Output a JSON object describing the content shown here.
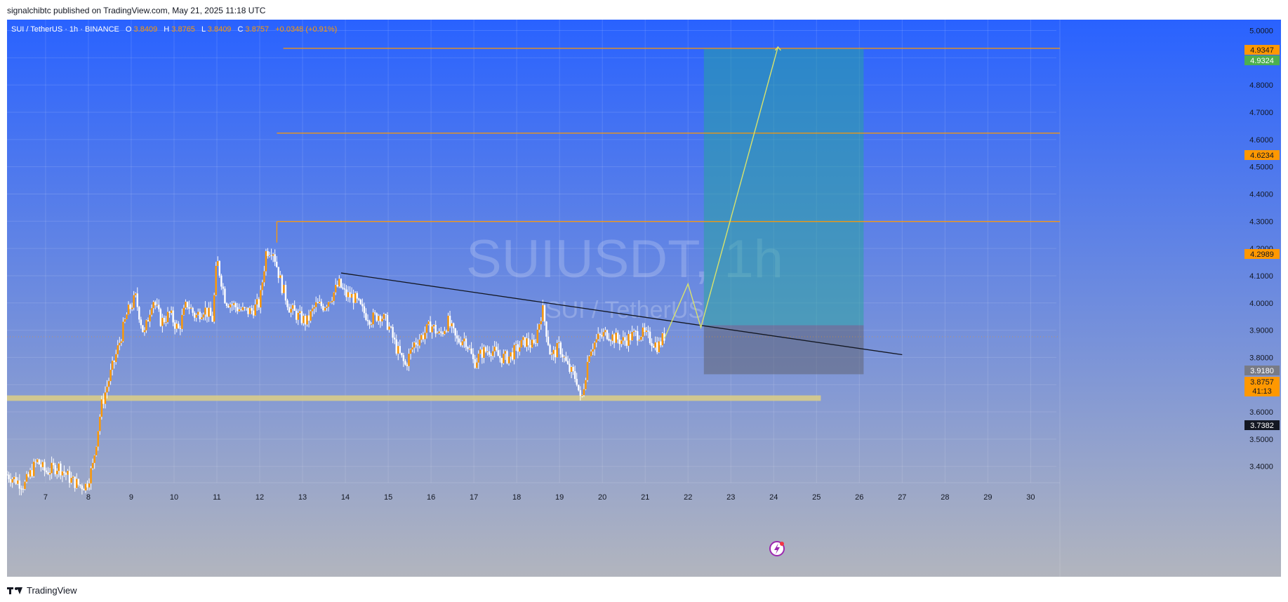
{
  "header": {
    "published_text": "signalchibtc published on TradingView.com, May 21, 2025 11:18 UTC"
  },
  "legend": {
    "symbol": "SUI / TetherUS · 1h · BINANCE",
    "o_label": "O",
    "o_value": "3.8409",
    "h_label": "H",
    "h_value": "3.8765",
    "l_label": "L",
    "l_value": "3.8409",
    "c_label": "C",
    "c_value": "3.8757",
    "change": "+0.0348 (+0.91%)"
  },
  "watermark": {
    "line1": "SUIUSDT, 1h",
    "line2": "SUI / TetherUS"
  },
  "price_tags": {
    "t4_9347": "4.9347",
    "t4_9324": "4.9324",
    "t4_6234": "4.6234",
    "t4_2989": "4.2989",
    "t3_9180": "3.9180",
    "t3_8757": "3.8757",
    "countdown": "41:13",
    "t3_7382": "3.7382"
  },
  "colors": {
    "bg_top": "#2962ff",
    "bg_bottom": "#b2b5be",
    "level_line": "#ff9800",
    "candle": "#ff9800",
    "wick": "#ffffff",
    "projection": "#d9e36b",
    "trendline": "#131722",
    "profit_zone": "#26a69a",
    "stop_zone": "#5d606b",
    "support_zone": "#d8cc8a",
    "tag_green": "#4caf50",
    "tag_dark": "#131722",
    "tag_grey": "#787b86"
  },
  "footer": {
    "brand": "TradingView"
  },
  "chart_data": {
    "type": "candlestick",
    "y_ticks": [
      "5.0000",
      "4.9000",
      "4.8000",
      "4.7000",
      "4.6000",
      "4.5000",
      "4.4000",
      "4.3000",
      "4.2000",
      "4.1000",
      "4.0000",
      "3.9000",
      "3.8000",
      "3.7000",
      "3.6000",
      "3.5000",
      "3.4000"
    ],
    "y_range": [
      3.34,
      5.04
    ],
    "x_ticks": [
      "7",
      "8",
      "9",
      "10",
      "11",
      "12",
      "13",
      "14",
      "15",
      "16",
      "17",
      "18",
      "19",
      "20",
      "21",
      "22",
      "23",
      "24",
      "25",
      "26",
      "27",
      "28",
      "29",
      "30"
    ],
    "x_range": [
      6.1,
      30.6
    ],
    "price_path": [
      [
        6.1,
        3.37
      ],
      [
        6.5,
        3.33
      ],
      [
        6.8,
        3.42
      ],
      [
        7.0,
        3.38
      ],
      [
        7.3,
        3.4
      ],
      [
        7.6,
        3.35
      ],
      [
        7.8,
        3.33
      ],
      [
        7.95,
        3.33
      ],
      [
        8.1,
        3.4
      ],
      [
        8.3,
        3.62
      ],
      [
        8.5,
        3.73
      ],
      [
        8.7,
        3.84
      ],
      [
        8.9,
        3.96
      ],
      [
        9.1,
        4.02
      ],
      [
        9.3,
        3.88
      ],
      [
        9.5,
        4.02
      ],
      [
        9.7,
        3.93
      ],
      [
        9.9,
        3.96
      ],
      [
        10.1,
        3.9
      ],
      [
        10.3,
        4.0
      ],
      [
        10.5,
        3.95
      ],
      [
        10.7,
        3.98
      ],
      [
        10.9,
        3.94
      ],
      [
        11.0,
        4.16
      ],
      [
        11.2,
        4.01
      ],
      [
        11.4,
        3.99
      ],
      [
        11.6,
        3.97
      ],
      [
        11.8,
        3.97
      ],
      [
        12.0,
        4.0
      ],
      [
        12.15,
        4.19
      ],
      [
        12.3,
        4.2
      ],
      [
        12.5,
        4.07
      ],
      [
        12.7,
        3.98
      ],
      [
        12.9,
        3.95
      ],
      [
        13.1,
        3.93
      ],
      [
        13.3,
        3.99
      ],
      [
        13.5,
        3.99
      ],
      [
        13.7,
        4.03
      ],
      [
        13.85,
        4.07
      ],
      [
        14.0,
        4.03
      ],
      [
        14.2,
        4.02
      ],
      [
        14.4,
        3.97
      ],
      [
        14.6,
        3.94
      ],
      [
        14.8,
        3.96
      ],
      [
        15.0,
        3.92
      ],
      [
        15.2,
        3.83
      ],
      [
        15.4,
        3.77
      ],
      [
        15.6,
        3.85
      ],
      [
        15.8,
        3.88
      ],
      [
        16.0,
        3.92
      ],
      [
        16.2,
        3.88
      ],
      [
        16.4,
        3.93
      ],
      [
        16.6,
        3.86
      ],
      [
        16.8,
        3.87
      ],
      [
        17.0,
        3.78
      ],
      [
        17.2,
        3.82
      ],
      [
        17.4,
        3.83
      ],
      [
        17.6,
        3.8
      ],
      [
        17.8,
        3.8
      ],
      [
        18.0,
        3.83
      ],
      [
        18.2,
        3.86
      ],
      [
        18.4,
        3.84
      ],
      [
        18.6,
        3.98
      ],
      [
        18.8,
        3.8
      ],
      [
        19.0,
        3.84
      ],
      [
        19.2,
        3.76
      ],
      [
        19.4,
        3.72
      ],
      [
        19.5,
        3.63
      ],
      [
        19.7,
        3.83
      ],
      [
        19.9,
        3.87
      ],
      [
        20.1,
        3.89
      ],
      [
        20.3,
        3.87
      ],
      [
        20.5,
        3.86
      ],
      [
        20.7,
        3.88
      ],
      [
        20.9,
        3.89
      ],
      [
        21.1,
        3.87
      ],
      [
        21.3,
        3.84
      ],
      [
        21.45,
        3.88
      ]
    ],
    "last_price": 3.8757,
    "levels": [
      4.9347,
      4.6234,
      4.2989
    ],
    "trendline": [
      [
        13.9,
        4.11
      ],
      [
        27.0,
        3.81
      ]
    ],
    "projection_path": [
      [
        21.45,
        3.87
      ],
      [
        22.0,
        4.07
      ],
      [
        22.3,
        3.91
      ],
      [
        24.1,
        4.94
      ]
    ],
    "position": {
      "x_start": 22.37,
      "x_end": 26.1,
      "entry": 3.918,
      "target": 4.9324,
      "stop": 3.7382
    },
    "support_zone": {
      "x_start": 6.1,
      "x_end": 25.1,
      "low": 3.6405,
      "high": 3.6605
    }
  }
}
